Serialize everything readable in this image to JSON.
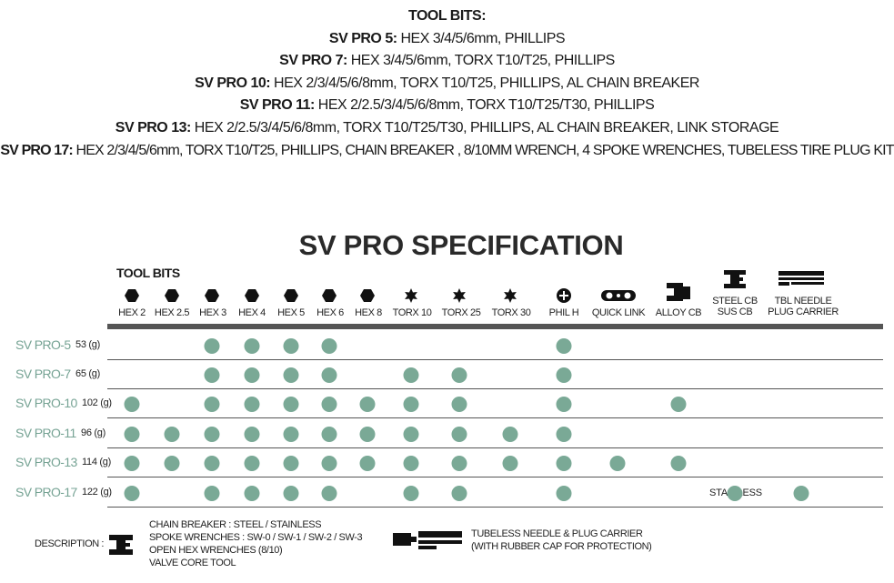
{
  "top": {
    "title": "TOOL BITS:",
    "lines": [
      {
        "model": "SV PRO 5:",
        "bits": " HEX 3/4/5/6mm, PHILLIPS"
      },
      {
        "model": "SV PRO 7:",
        "bits": " HEX 3/4/5/6mm, TORX T10/T25, PHILLIPS"
      },
      {
        "model": "SV PRO 10:",
        "bits": " HEX 2/3/4/5/6/8mm, TORX T10/T25, PHILLIPS, AL CHAIN BREAKER"
      },
      {
        "model": "SV PRO 11:",
        "bits": " HEX 2/2.5/3/4/5/6/8mm, TORX T10/T25/T30, PHILLIPS"
      },
      {
        "model": "SV PRO 13:",
        "bits": " HEX 2/2.5/3/4/5/6/8mm, TORX T10/T25/T30, PHILLIPS, AL CHAIN BREAKER, LINK STORAGE"
      },
      {
        "model": "SV PRO 17:",
        "bits": " HEX 2/3/4/5/6mm, TORX T10/T25, PHILLIPS, CHAIN BREAKER , 8/10MM WRENCH, 4 SPOKE WRENCHES, TUBELESS TIRE PLUG KIT"
      }
    ]
  },
  "spec": {
    "title": "SV PRO SPECIFICATION",
    "tool_bits_heading": "TOOL BITS",
    "columns": [
      {
        "label": "HEX 2",
        "icon": "hex-icon"
      },
      {
        "label": "HEX 2.5",
        "icon": "hex-icon"
      },
      {
        "label": "HEX 3",
        "icon": "hex-icon"
      },
      {
        "label": "HEX 4",
        "icon": "hex-icon"
      },
      {
        "label": "HEX 5",
        "icon": "hex-icon"
      },
      {
        "label": "HEX 6",
        "icon": "hex-icon"
      },
      {
        "label": "HEX 8",
        "icon": "hex-icon"
      },
      {
        "label": "TORX 10",
        "icon": "torx-icon"
      },
      {
        "label": "TORX 25",
        "icon": "torx-icon"
      },
      {
        "label": "TORX 30",
        "icon": "torx-icon"
      },
      {
        "label": "PHIL H",
        "icon": "phillips-icon"
      },
      {
        "label": "QUICK LINK",
        "icon": "quick-link-icon"
      },
      {
        "label": "ALLOY CB",
        "icon": "alloy-chain-breaker-icon"
      },
      {
        "label": "STEEL CB",
        "label2": "SUS CB",
        "icon": "steel-chain-breaker-icon"
      },
      {
        "label": "TBL NEEDLE",
        "label2": "PLUG CARRIER",
        "icon": "needle-plug-carrier-icon"
      }
    ],
    "rows": [
      {
        "name": "SV PRO-5",
        "weight": "53 (g)",
        "bits": [
          2,
          3,
          4,
          5,
          10
        ]
      },
      {
        "name": "SV PRO-7",
        "weight": "65 (g)",
        "bits": [
          2,
          3,
          4,
          5,
          7,
          8,
          10
        ]
      },
      {
        "name": "SV PRO-10",
        "weight": "102 (g)",
        "bits": [
          0,
          2,
          3,
          4,
          5,
          6,
          7,
          8,
          10,
          12
        ]
      },
      {
        "name": "SV PRO-11",
        "weight": "96 (g)",
        "bits": [
          0,
          1,
          2,
          3,
          4,
          5,
          6,
          7,
          8,
          9,
          10
        ]
      },
      {
        "name": "SV PRO-13",
        "weight": "114 (g)",
        "bits": [
          0,
          1,
          2,
          3,
          4,
          5,
          6,
          7,
          8,
          9,
          10,
          11,
          12
        ]
      },
      {
        "name": "SV PRO-17",
        "weight": "122 (g)",
        "bits": [
          0,
          2,
          3,
          4,
          5,
          7,
          8,
          10,
          13,
          14
        ],
        "note": "STAINLESS"
      }
    ],
    "dot_color": "#7aa996",
    "name_color": "#76a394"
  },
  "description": {
    "label": "DESCRIPTION :",
    "chain_breaker_lines": [
      "CHAIN BREAKER : STEEL / STAINLESS",
      "SPOKE WRENCHES : SW-0 / SW-1 / SW-2 / SW-3",
      "OPEN HEX WRENCHES (8/10)",
      "VALVE CORE TOOL"
    ],
    "carrier_lines": [
      "TUBELESS NEEDLE & PLUG CARRIER",
      "(WITH RUBBER CAP FOR PROTECTION)"
    ]
  }
}
